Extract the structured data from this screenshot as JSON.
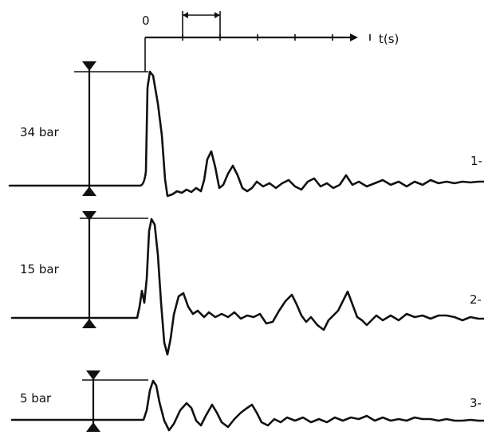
{
  "time_axis": {
    "origin_label": "0",
    "unit_label": "t(s)",
    "tick_count": 6,
    "bracketed_interval": [
      1,
      2
    ]
  },
  "traces": [
    {
      "id": "1",
      "label": "1-",
      "peak_label": "34 bar"
    },
    {
      "id": "2",
      "label": "2-",
      "peak_label": "15 bar"
    },
    {
      "id": "3",
      "label": "3-",
      "peak_label": "5 bar"
    }
  ]
}
